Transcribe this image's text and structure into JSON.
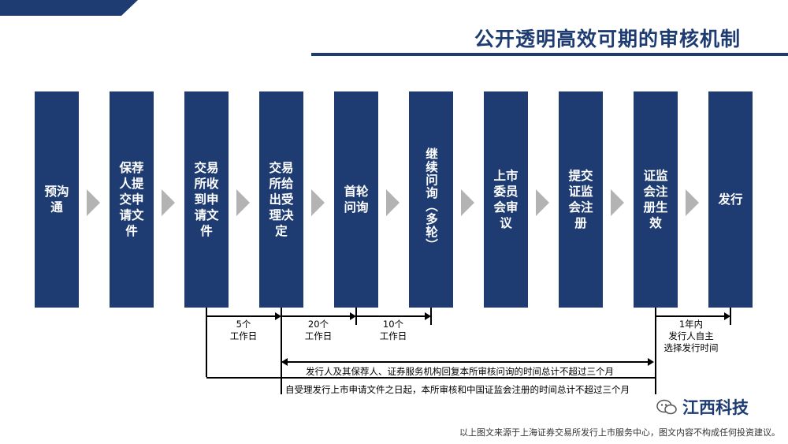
{
  "title": "公开透明高效可期的审核机制",
  "steps": [
    {
      "label": "预沟\n通"
    },
    {
      "label": "保荐\n人提\n交申\n请文\n件"
    },
    {
      "label": "交易\n所收\n到申\n请文\n件"
    },
    {
      "label": "交易\n所给\n出受\n理决\n定"
    },
    {
      "label": "首轮\n问询"
    },
    {
      "label": "继续问询（多轮）"
    },
    {
      "label": "上市\n委员\n会审\n议"
    },
    {
      "label": "提交\n证监\n会注\n册"
    },
    {
      "label": "证监\n会注\n册生\n效"
    },
    {
      "label": "发行"
    }
  ],
  "timeline": {
    "seg1": "5个\n工作日",
    "seg2": "20个\n工作日",
    "seg3": "10个\n工作日",
    "seg4": "1年内\n发行人自主\n选择发行时间",
    "note1": "发行人及其保荐人、证券服务机构回复本所审核问询的时间总计不超过三个月",
    "note2": "自受理发行上市申请文件之日起，本所审核和中国证监会注册的时间总计不超过三个月"
  },
  "watermark": {
    "text": "江西科技",
    "icon": "wechat-icon"
  },
  "footer": "以上图文来源于上海证券交易所发行上市服务中心，图文内容不构成任何投资建议。",
  "colors": {
    "primary": "#1e3c72",
    "chevron": "#b3b3b3"
  }
}
